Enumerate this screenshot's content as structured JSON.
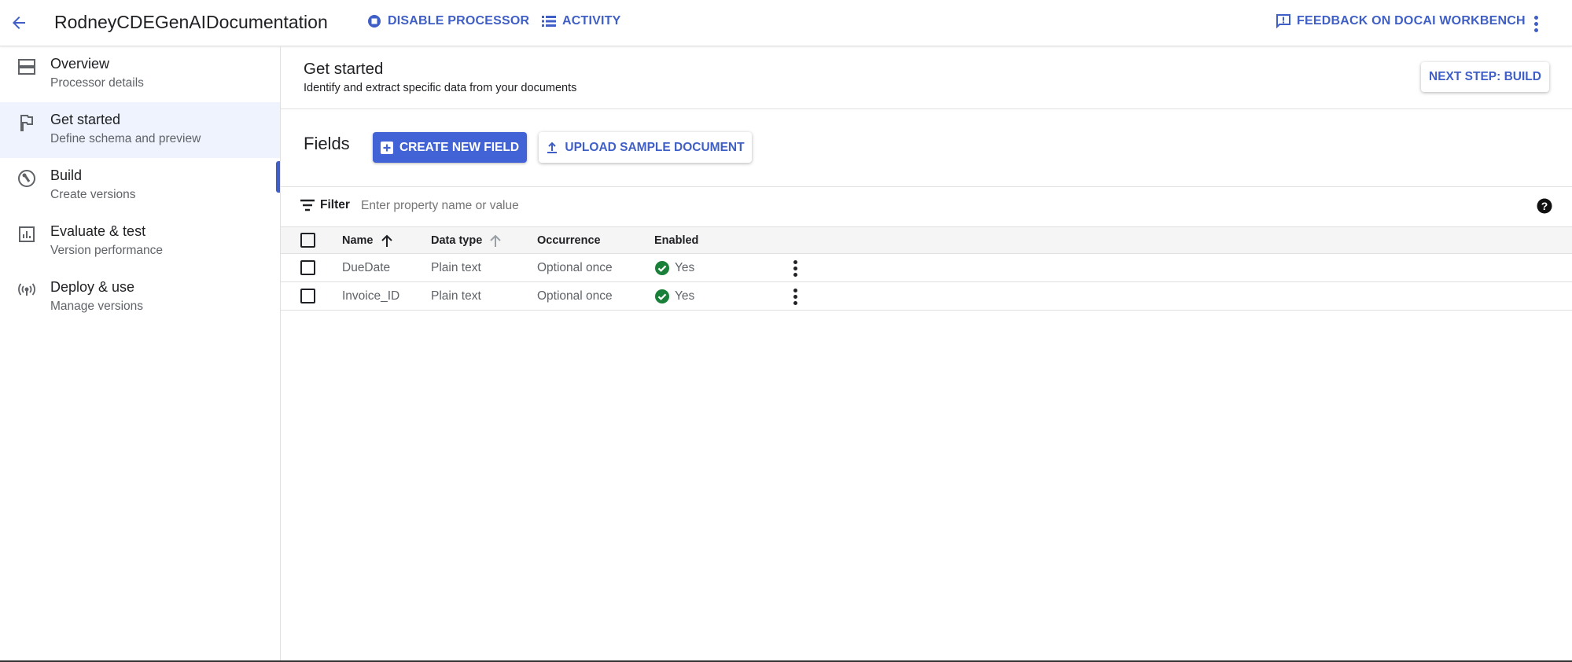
{
  "topbar": {
    "title": "RodneyCDEGenAIDocumentation",
    "disable_processor": "DISABLE PROCESSOR",
    "activity": "ACTIVITY",
    "feedback": "FEEDBACK ON DOCAI WORKBENCH"
  },
  "sidebar": {
    "items": [
      {
        "label": "Overview",
        "sub": "Processor details",
        "icon": "overview-icon"
      },
      {
        "label": "Get started",
        "sub": "Define schema and preview",
        "icon": "flag-icon",
        "active": true
      },
      {
        "label": "Build",
        "sub": "Create versions",
        "icon": "build-icon"
      },
      {
        "label": "Evaluate & test",
        "sub": "Version performance",
        "icon": "chart-icon"
      },
      {
        "label": "Deploy & use",
        "sub": "Manage versions",
        "icon": "broadcast-icon"
      }
    ]
  },
  "header": {
    "title": "Get started",
    "subtitle": "Identify and extract specific data from your documents",
    "next_step": "NEXT STEP: BUILD"
  },
  "fields": {
    "title": "Fields",
    "create": "CREATE NEW FIELD",
    "upload": "UPLOAD SAMPLE DOCUMENT"
  },
  "filter": {
    "label": "Filter",
    "placeholder": "Enter property name or value"
  },
  "table": {
    "columns": [
      "Name",
      "Data type",
      "Occurrence",
      "Enabled"
    ],
    "rows": [
      {
        "name": "DueDate",
        "type": "Plain text",
        "occurrence": "Optional once",
        "enabled": "Yes"
      },
      {
        "name": "Invoice_ID",
        "type": "Plain text",
        "occurrence": "Optional once",
        "enabled": "Yes"
      }
    ]
  },
  "colors": {
    "accent": "#3f5fc6",
    "success": "#188038",
    "active_bg": "#eef3fd"
  }
}
